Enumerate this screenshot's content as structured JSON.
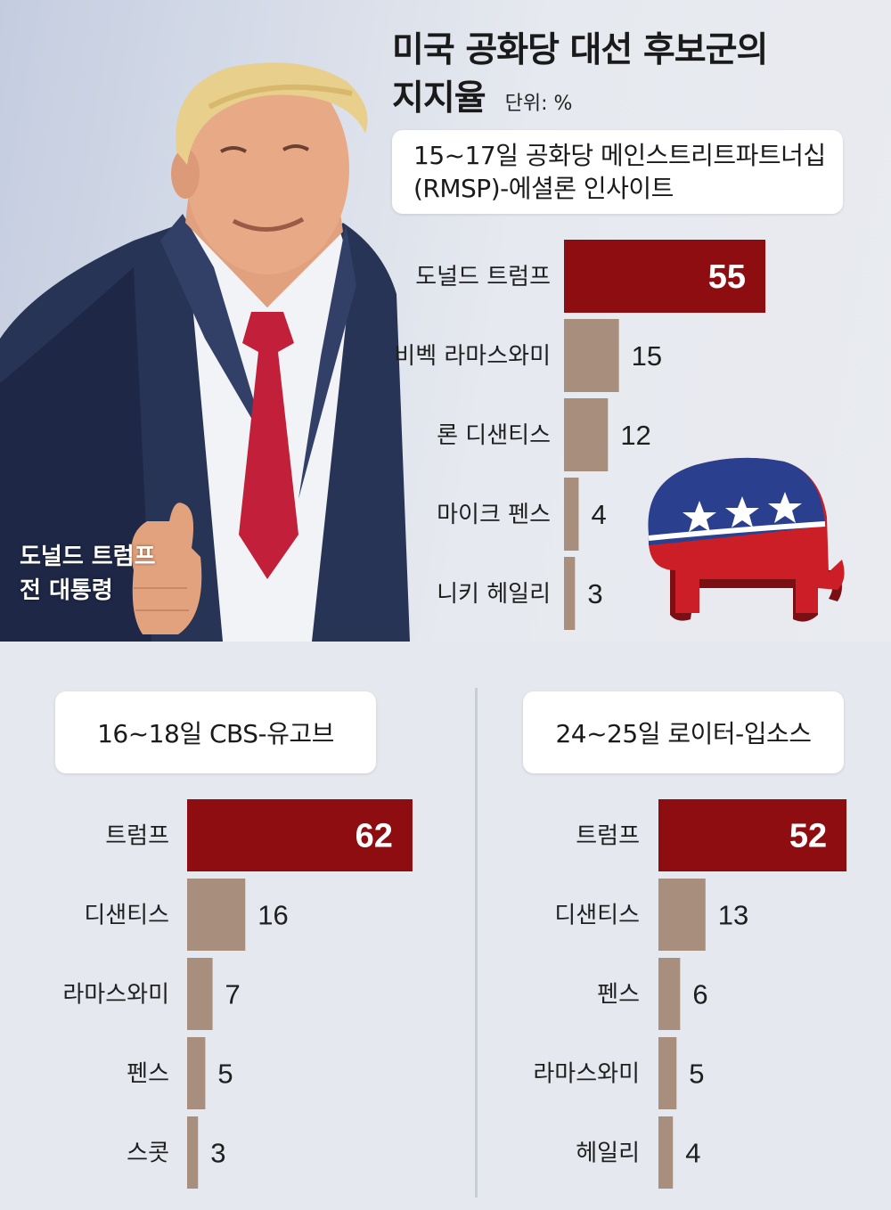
{
  "title_line1": "미국 공화당 대선 후보군의",
  "title_line2": "지지율",
  "unit": "단위: %",
  "photo_caption_line1": "도널드 트럼프",
  "photo_caption_line2": "전 대통령",
  "colors": {
    "leader_bar": "#8e0d10",
    "other_bar": "#a88e7c",
    "background": "#e7e9ef"
  },
  "icons": [
    "trump-photo",
    "republican-elephant-icon"
  ],
  "chart_data": [
    {
      "type": "bar",
      "source_line1": "15~17일 공화당 메인스트리트파트너십",
      "source_line2": "(RMSP)-에셜론 인사이트",
      "categories": [
        "도널드 트럼프",
        "비벡 라마스와미",
        "론 디샌티스",
        "마이크 펜스",
        "니키 헤일리"
      ],
      "values": [
        55,
        15,
        12,
        4,
        3
      ],
      "orientation": "horizontal"
    },
    {
      "type": "bar",
      "source_line1": "16~18일 CBS-유고브",
      "categories": [
        "트럼프",
        "디샌티스",
        "라마스와미",
        "펜스",
        "스콧"
      ],
      "values": [
        62,
        16,
        7,
        5,
        3
      ],
      "orientation": "horizontal"
    },
    {
      "type": "bar",
      "source_line1": "24~25일 로이터-입소스",
      "categories": [
        "트럼프",
        "디샌티스",
        "펜스",
        "라마스와미",
        "헤일리"
      ],
      "values": [
        52,
        13,
        6,
        5,
        4
      ],
      "orientation": "horizontal"
    }
  ]
}
